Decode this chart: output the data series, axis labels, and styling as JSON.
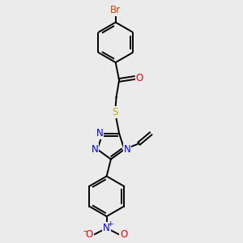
{
  "bg_color": "#ebebeb",
  "bond_color": "#000000",
  "N_color": "#0000ff",
  "O_color": "#ff0000",
  "S_color": "#ccaa00",
  "Br_color": "#cc4400",
  "lw": 1.4,
  "fs": 8.5,
  "xlim": [
    -1.0,
    4.5
  ],
  "ylim": [
    -4.5,
    5.5
  ]
}
